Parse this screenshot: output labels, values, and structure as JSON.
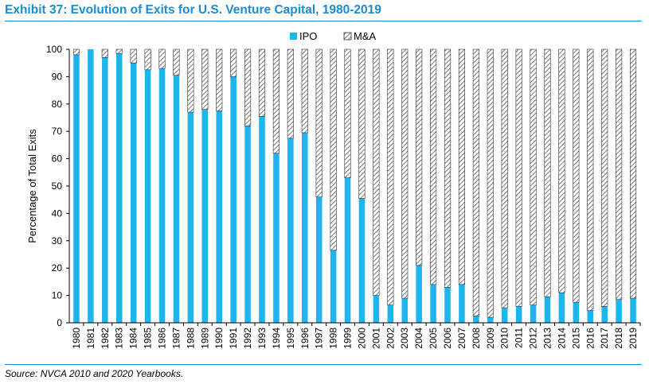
{
  "title": "Exhibit 37: Evolution of Exits for U.S. Venture Capital, 1980-2019",
  "source": "Source: NVCA 2010 and 2020 Yearbooks.",
  "colors": {
    "ipo": "#1eb4ee",
    "title": "#1a8ed0",
    "hatch": "#555555"
  },
  "chart_data": {
    "type": "bar",
    "stacked": true,
    "percent": true,
    "title": "Exhibit 37: Evolution of Exits for U.S. Venture Capital, 1980-2019",
    "xlabel": "",
    "ylabel": "Percentage of Total Exits",
    "ylim": [
      0,
      100
    ],
    "yticks": [
      0,
      10,
      20,
      30,
      40,
      50,
      60,
      70,
      80,
      90,
      100
    ],
    "grid": false,
    "legend": "top-center",
    "categories": [
      "1980",
      "1981",
      "1982",
      "1983",
      "1984",
      "1985",
      "1986",
      "1987",
      "1988",
      "1989",
      "1990",
      "1991",
      "1992",
      "1993",
      "1994",
      "1995",
      "1996",
      "1997",
      "1998",
      "1999",
      "2000",
      "2001",
      "2002",
      "2003",
      "2004",
      "2005",
      "2006",
      "2007",
      "2008",
      "2009",
      "2010",
      "2011",
      "2012",
      "2013",
      "2014",
      "2015",
      "2016",
      "2017",
      "2018",
      "2019"
    ],
    "series": [
      {
        "name": "IPO",
        "values": [
          98,
          100,
          97,
          98.5,
          95,
          92.5,
          93,
          90.5,
          77,
          78,
          77.5,
          90,
          72,
          75.5,
          62,
          67.5,
          69.5,
          46,
          26.5,
          53,
          45.5,
          10,
          6.5,
          9,
          21,
          14,
          13,
          14,
          2.5,
          2,
          5.5,
          6,
          6.5,
          9.5,
          11,
          7.5,
          4.5,
          6,
          8.5,
          9
        ]
      },
      {
        "name": "M&A",
        "values": [
          2,
          0,
          3,
          1.5,
          5,
          7.5,
          7,
          9.5,
          23,
          22,
          22.5,
          10,
          28,
          24.5,
          38,
          32.5,
          30.5,
          54,
          73.5,
          47,
          54.5,
          90,
          93.5,
          91,
          79,
          86,
          87,
          86,
          97.5,
          98,
          94.5,
          94,
          93.5,
          90.5,
          89,
          92.5,
          95.5,
          94,
          91.5,
          91
        ]
      }
    ]
  }
}
